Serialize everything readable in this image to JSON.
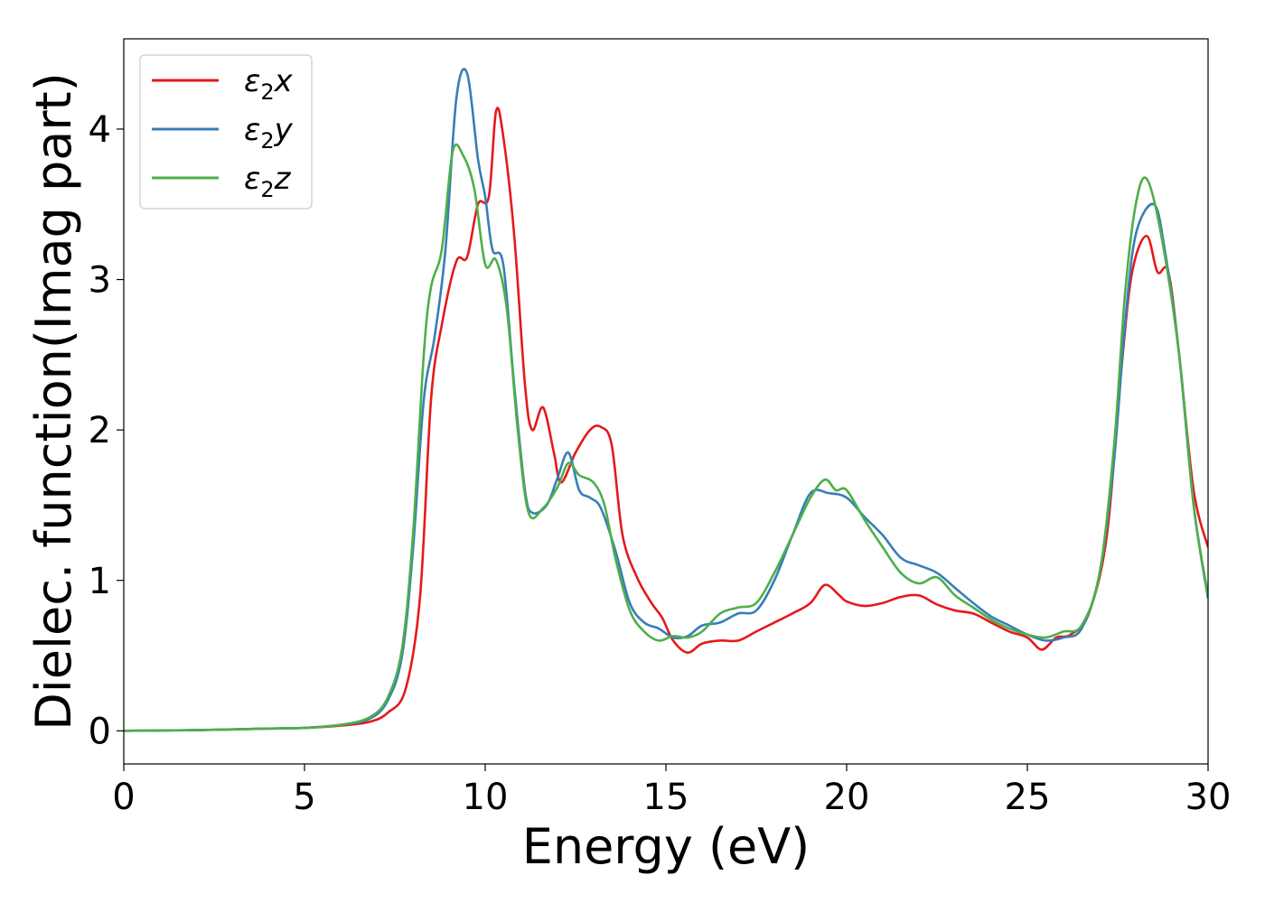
{
  "chart_data": {
    "type": "line",
    "xlabel": "Energy (eV)",
    "ylabel": "Dielec. function(Imag part)",
    "xlim": [
      0,
      30
    ],
    "ylim": [
      -0.22,
      4.6
    ],
    "xticks": [
      0,
      5,
      10,
      15,
      20,
      25,
      30
    ],
    "yticks": [
      0,
      1,
      2,
      3,
      4
    ],
    "grid": false,
    "legend_position": "top-left",
    "series": [
      {
        "name": "ε₂x",
        "label_base": "ε",
        "label_sub": "2",
        "label_suffix": "x",
        "color": "#e41a1c",
        "points": [
          [
            0,
            0
          ],
          [
            2,
            0.005
          ],
          [
            4,
            0.015
          ],
          [
            5,
            0.02
          ],
          [
            6,
            0.035
          ],
          [
            6.8,
            0.06
          ],
          [
            7.3,
            0.12
          ],
          [
            7.8,
            0.28
          ],
          [
            8.2,
            0.9
          ],
          [
            8.5,
            2.2
          ],
          [
            8.8,
            2.7
          ],
          [
            9.2,
            3.12
          ],
          [
            9.5,
            3.15
          ],
          [
            9.8,
            3.5
          ],
          [
            10.1,
            3.55
          ],
          [
            10.3,
            4.12
          ],
          [
            10.5,
            3.95
          ],
          [
            10.8,
            3.3
          ],
          [
            11.1,
            2.3
          ],
          [
            11.3,
            2.0
          ],
          [
            11.6,
            2.15
          ],
          [
            11.9,
            1.85
          ],
          [
            12.1,
            1.65
          ],
          [
            12.5,
            1.85
          ],
          [
            12.9,
            2.0
          ],
          [
            13.2,
            2.02
          ],
          [
            13.5,
            1.9
          ],
          [
            13.8,
            1.3
          ],
          [
            14.2,
            1.02
          ],
          [
            14.6,
            0.85
          ],
          [
            14.9,
            0.75
          ],
          [
            15.2,
            0.6
          ],
          [
            15.6,
            0.52
          ],
          [
            16.0,
            0.58
          ],
          [
            16.5,
            0.6
          ],
          [
            17.0,
            0.6
          ],
          [
            17.5,
            0.66
          ],
          [
            18.0,
            0.72
          ],
          [
            18.5,
            0.78
          ],
          [
            19.0,
            0.85
          ],
          [
            19.4,
            0.97
          ],
          [
            19.8,
            0.9
          ],
          [
            20.0,
            0.86
          ],
          [
            20.5,
            0.83
          ],
          [
            21.0,
            0.85
          ],
          [
            21.5,
            0.89
          ],
          [
            22.0,
            0.9
          ],
          [
            22.5,
            0.84
          ],
          [
            23.0,
            0.8
          ],
          [
            23.5,
            0.78
          ],
          [
            24.0,
            0.72
          ],
          [
            24.5,
            0.66
          ],
          [
            25.0,
            0.62
          ],
          [
            25.4,
            0.54
          ],
          [
            25.8,
            0.62
          ],
          [
            26.2,
            0.64
          ],
          [
            26.7,
            0.78
          ],
          [
            27.2,
            1.3
          ],
          [
            27.6,
            2.4
          ],
          [
            27.9,
            3.05
          ],
          [
            28.3,
            3.29
          ],
          [
            28.6,
            3.05
          ],
          [
            28.9,
            3.05
          ],
          [
            29.2,
            2.5
          ],
          [
            29.6,
            1.6
          ],
          [
            30.0,
            1.22
          ]
        ]
      },
      {
        "name": "ε₂y",
        "label_base": "ε",
        "label_sub": "2",
        "label_suffix": "y",
        "color": "#377eb8",
        "points": [
          [
            0,
            0
          ],
          [
            2,
            0.005
          ],
          [
            4,
            0.015
          ],
          [
            5,
            0.02
          ],
          [
            6,
            0.04
          ],
          [
            6.8,
            0.08
          ],
          [
            7.3,
            0.2
          ],
          [
            7.7,
            0.5
          ],
          [
            8.0,
            1.2
          ],
          [
            8.3,
            2.2
          ],
          [
            8.6,
            2.62
          ],
          [
            8.9,
            3.2
          ],
          [
            9.2,
            4.2
          ],
          [
            9.5,
            4.37
          ],
          [
            9.8,
            3.8
          ],
          [
            10.0,
            3.55
          ],
          [
            10.2,
            3.2
          ],
          [
            10.5,
            3.1
          ],
          [
            10.8,
            2.3
          ],
          [
            11.1,
            1.6
          ],
          [
            11.3,
            1.45
          ],
          [
            11.7,
            1.5
          ],
          [
            12.0,
            1.68
          ],
          [
            12.3,
            1.85
          ],
          [
            12.6,
            1.6
          ],
          [
            12.9,
            1.55
          ],
          [
            13.2,
            1.48
          ],
          [
            13.6,
            1.2
          ],
          [
            14.0,
            0.85
          ],
          [
            14.4,
            0.72
          ],
          [
            14.8,
            0.68
          ],
          [
            15.2,
            0.62
          ],
          [
            15.6,
            0.63
          ],
          [
            16.0,
            0.7
          ],
          [
            16.5,
            0.72
          ],
          [
            17.0,
            0.78
          ],
          [
            17.5,
            0.8
          ],
          [
            18.0,
            1.0
          ],
          [
            18.5,
            1.3
          ],
          [
            19.0,
            1.58
          ],
          [
            19.5,
            1.58
          ],
          [
            20.0,
            1.55
          ],
          [
            20.5,
            1.42
          ],
          [
            21.0,
            1.3
          ],
          [
            21.5,
            1.15
          ],
          [
            22.0,
            1.1
          ],
          [
            22.5,
            1.05
          ],
          [
            23.0,
            0.95
          ],
          [
            23.5,
            0.85
          ],
          [
            24.0,
            0.76
          ],
          [
            24.5,
            0.7
          ],
          [
            25.0,
            0.64
          ],
          [
            25.5,
            0.6
          ],
          [
            26.0,
            0.62
          ],
          [
            26.5,
            0.68
          ],
          [
            27.0,
            1.05
          ],
          [
            27.4,
            1.8
          ],
          [
            27.7,
            2.7
          ],
          [
            28.0,
            3.3
          ],
          [
            28.5,
            3.5
          ],
          [
            28.8,
            3.2
          ],
          [
            29.2,
            2.5
          ],
          [
            29.6,
            1.5
          ],
          [
            30.0,
            0.88
          ]
        ]
      },
      {
        "name": "ε₂z",
        "label_base": "ε",
        "label_sub": "2",
        "label_suffix": "z",
        "color": "#4daf4a",
        "points": [
          [
            0,
            0
          ],
          [
            2,
            0.005
          ],
          [
            4,
            0.015
          ],
          [
            5,
            0.02
          ],
          [
            6,
            0.04
          ],
          [
            6.8,
            0.09
          ],
          [
            7.3,
            0.22
          ],
          [
            7.7,
            0.55
          ],
          [
            8.0,
            1.3
          ],
          [
            8.3,
            2.5
          ],
          [
            8.5,
            2.95
          ],
          [
            8.8,
            3.2
          ],
          [
            9.1,
            3.85
          ],
          [
            9.4,
            3.82
          ],
          [
            9.7,
            3.6
          ],
          [
            10.0,
            3.1
          ],
          [
            10.3,
            3.13
          ],
          [
            10.6,
            2.8
          ],
          [
            10.9,
            2.0
          ],
          [
            11.2,
            1.45
          ],
          [
            11.6,
            1.48
          ],
          [
            12.0,
            1.62
          ],
          [
            12.3,
            1.78
          ],
          [
            12.6,
            1.7
          ],
          [
            13.0,
            1.65
          ],
          [
            13.3,
            1.5
          ],
          [
            13.6,
            1.15
          ],
          [
            14.0,
            0.8
          ],
          [
            14.4,
            0.66
          ],
          [
            14.8,
            0.6
          ],
          [
            15.2,
            0.63
          ],
          [
            15.6,
            0.62
          ],
          [
            16.0,
            0.66
          ],
          [
            16.5,
            0.78
          ],
          [
            17.0,
            0.82
          ],
          [
            17.5,
            0.85
          ],
          [
            18.0,
            1.05
          ],
          [
            18.5,
            1.3
          ],
          [
            19.0,
            1.55
          ],
          [
            19.4,
            1.67
          ],
          [
            19.7,
            1.6
          ],
          [
            20.0,
            1.6
          ],
          [
            20.5,
            1.4
          ],
          [
            21.0,
            1.22
          ],
          [
            21.5,
            1.05
          ],
          [
            22.0,
            0.98
          ],
          [
            22.5,
            1.02
          ],
          [
            23.0,
            0.9
          ],
          [
            23.5,
            0.82
          ],
          [
            24.0,
            0.74
          ],
          [
            24.5,
            0.68
          ],
          [
            25.0,
            0.64
          ],
          [
            25.5,
            0.62
          ],
          [
            26.0,
            0.66
          ],
          [
            26.5,
            0.7
          ],
          [
            27.0,
            1.05
          ],
          [
            27.4,
            1.9
          ],
          [
            27.7,
            2.9
          ],
          [
            28.0,
            3.5
          ],
          [
            28.3,
            3.67
          ],
          [
            28.7,
            3.3
          ],
          [
            29.2,
            2.5
          ],
          [
            29.6,
            1.5
          ],
          [
            30.0,
            0.9
          ]
        ]
      }
    ]
  }
}
